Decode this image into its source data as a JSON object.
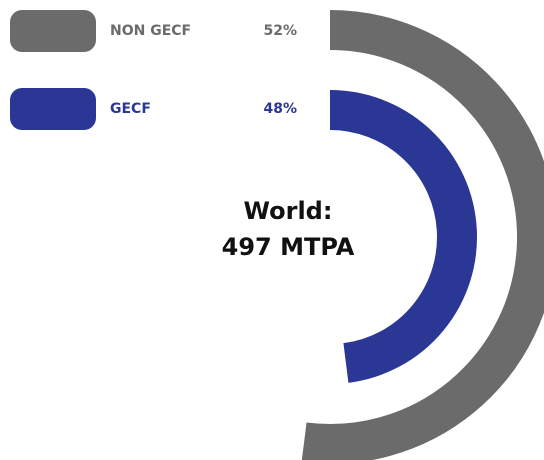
{
  "chart_data": {
    "type": "radial_bar",
    "categories": [
      "NON GECF",
      "GECF"
    ],
    "values": [
      52,
      48
    ],
    "value_labels": [
      "52%",
      "48%"
    ],
    "colors": [
      "#6b6b6b",
      "#2b3794"
    ],
    "ylim": [
      0,
      100
    ],
    "center_label": [
      "World:",
      "497 MTPA"
    ]
  }
}
